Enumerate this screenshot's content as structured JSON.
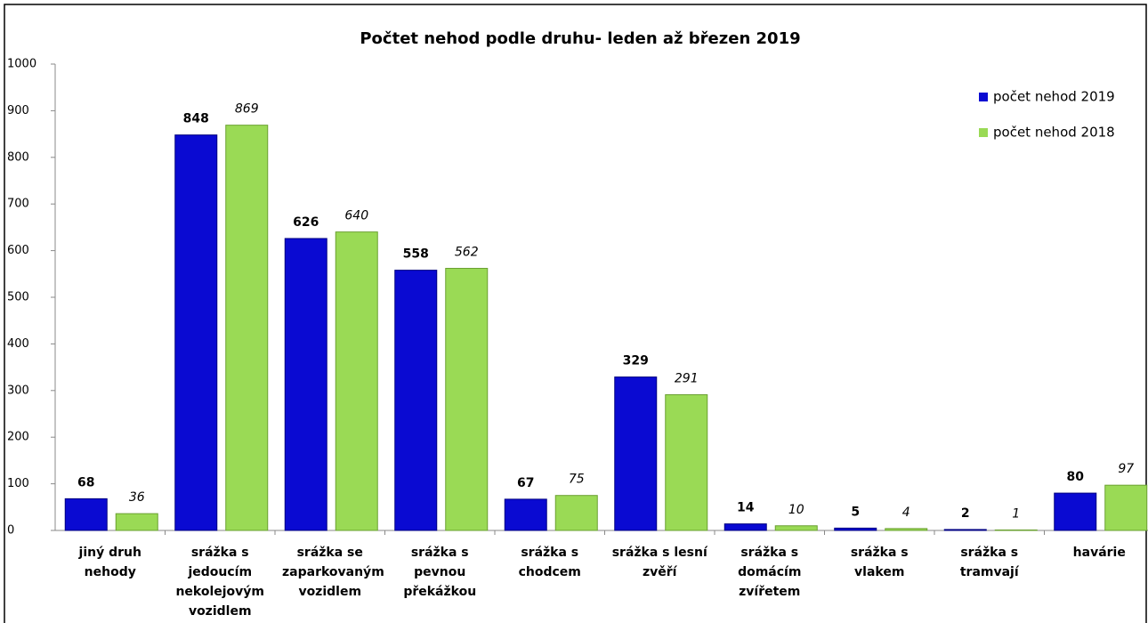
{
  "chart_data": {
    "type": "bar",
    "title": "Počtet nehod podle druhu- leden až březen 2019",
    "categories": [
      "jiný druh nehody",
      "srážka s jedoucím nekolejovým vozidlem",
      "srážka se zaparkovaným vozidlem",
      "srážka s pevnou překážkou",
      "srážka s chodcem",
      "srážka s lesní zvěří",
      "srážka s domácím zvířetem",
      "srážka s vlakem",
      "srážka s tramvají",
      "havárie"
    ],
    "series": [
      {
        "name": "počet nehod 2019",
        "color": "#0a0ad2",
        "values": [
          68,
          848,
          626,
          558,
          67,
          329,
          14,
          5,
          2,
          80
        ]
      },
      {
        "name": "počet nehod 2018",
        "color": "#9ada55",
        "values": [
          36,
          869,
          640,
          562,
          75,
          291,
          10,
          4,
          1,
          97
        ]
      }
    ],
    "ylim": [
      0,
      1000
    ],
    "yticks": [
      0,
      100,
      200,
      300,
      400,
      500,
      600,
      700,
      800,
      900,
      1000
    ],
    "grid": false,
    "legend": "top-right"
  }
}
